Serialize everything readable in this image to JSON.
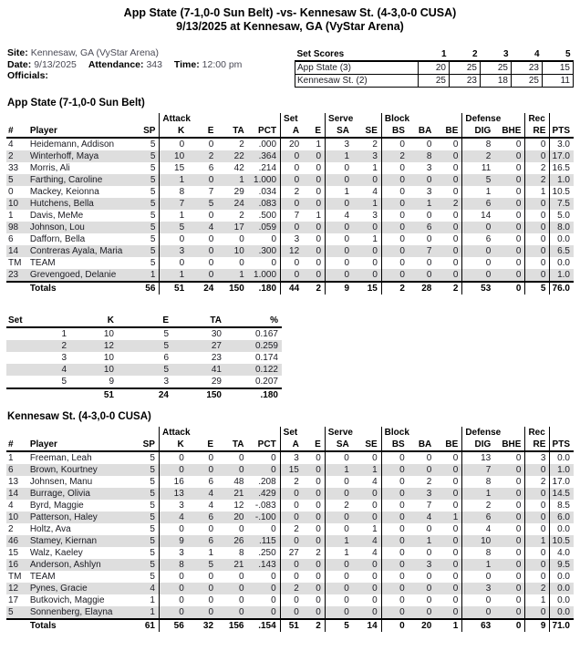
{
  "header": {
    "title_line1": "App State (7-1,0-0 Sun Belt) -vs- Kennesaw St. (4-3,0-0 CUSA)",
    "title_line2": "9/13/2025 at Kennesaw, GA (VyStar Arena)"
  },
  "info": {
    "site_label": "Site:",
    "site": "Kennesaw, GA (VyStar Arena)",
    "date_label": "Date:",
    "date": "9/13/2025",
    "attendance_label": "Attendance:",
    "attendance": "343",
    "time_label": "Time:",
    "time": "12:00 pm",
    "officials_label": "Officials:"
  },
  "set_scores": {
    "title": "Set Scores",
    "columns": [
      "1",
      "2",
      "3",
      "4",
      "5"
    ],
    "rows": [
      {
        "team": "App State (3)",
        "scores": [
          "20",
          "25",
          "25",
          "23",
          "15"
        ]
      },
      {
        "team": "Kennesaw St. (2)",
        "scores": [
          "25",
          "23",
          "18",
          "25",
          "11"
        ]
      }
    ]
  },
  "stat_table": {
    "groups": [
      {
        "label": "",
        "span": 3
      },
      {
        "label": "Attack",
        "span": 4
      },
      {
        "label": "Set",
        "span": 2
      },
      {
        "label": "Serve",
        "span": 2
      },
      {
        "label": "Block",
        "span": 3
      },
      {
        "label": "Defense",
        "span": 2
      },
      {
        "label": "Rec",
        "span": 1
      },
      {
        "label": "",
        "span": 1
      }
    ],
    "columns": [
      "#",
      "Player",
      "SP",
      "K",
      "E",
      "TA",
      "PCT",
      "A",
      "E",
      "SA",
      "SE",
      "BS",
      "BA",
      "BE",
      "DIG",
      "BHE",
      "RE",
      "PTS"
    ],
    "totals_label": "Totals"
  },
  "teams": [
    {
      "heading": "App State (7-1,0-0 Sun Belt)",
      "players": [
        [
          "4",
          "Heidemann, Addison",
          "5",
          "0",
          "0",
          "2",
          ".000",
          "20",
          "1",
          "3",
          "2",
          "0",
          "0",
          "0",
          "8",
          "0",
          "0",
          "3.0"
        ],
        [
          "2",
          "Winterhoff, Maya",
          "5",
          "10",
          "2",
          "22",
          ".364",
          "0",
          "0",
          "1",
          "3",
          "2",
          "8",
          "0",
          "2",
          "0",
          "0",
          "17.0"
        ],
        [
          "33",
          "Morris, Ali",
          "5",
          "15",
          "6",
          "42",
          ".214",
          "0",
          "0",
          "0",
          "1",
          "0",
          "3",
          "0",
          "11",
          "0",
          "2",
          "16.5"
        ],
        [
          "5",
          "Farthing, Caroline",
          "5",
          "1",
          "0",
          "1",
          "1.000",
          "0",
          "0",
          "0",
          "0",
          "0",
          "0",
          "0",
          "5",
          "0",
          "2",
          "1.0"
        ],
        [
          "0",
          "Mackey, Keionna",
          "5",
          "8",
          "7",
          "29",
          ".034",
          "2",
          "0",
          "1",
          "4",
          "0",
          "3",
          "0",
          "1",
          "0",
          "1",
          "10.5"
        ],
        [
          "10",
          "Hutchens, Bella",
          "5",
          "7",
          "5",
          "24",
          ".083",
          "0",
          "0",
          "0",
          "1",
          "0",
          "1",
          "2",
          "6",
          "0",
          "0",
          "7.5"
        ],
        [
          "1",
          "Davis, MeMe",
          "5",
          "1",
          "0",
          "2",
          ".500",
          "7",
          "1",
          "4",
          "3",
          "0",
          "0",
          "0",
          "14",
          "0",
          "0",
          "5.0"
        ],
        [
          "98",
          "Johnson, Lou",
          "5",
          "5",
          "4",
          "17",
          ".059",
          "0",
          "0",
          "0",
          "0",
          "0",
          "6",
          "0",
          "0",
          "0",
          "0",
          "8.0"
        ],
        [
          "6",
          "Dafforn, Bella",
          "5",
          "0",
          "0",
          "0",
          "0",
          "3",
          "0",
          "0",
          "1",
          "0",
          "0",
          "0",
          "6",
          "0",
          "0",
          "0.0"
        ],
        [
          "14",
          "Contreras Ayala, Maria",
          "5",
          "3",
          "0",
          "10",
          ".300",
          "12",
          "0",
          "0",
          "0",
          "0",
          "7",
          "0",
          "0",
          "0",
          "0",
          "6.5"
        ],
        [
          "TM",
          "TEAM",
          "5",
          "0",
          "0",
          "0",
          "0",
          "0",
          "0",
          "0",
          "0",
          "0",
          "0",
          "0",
          "0",
          "0",
          "0",
          "0.0"
        ],
        [
          "23",
          "Grevengoed, Delanie",
          "1",
          "1",
          "0",
          "1",
          "1.000",
          "0",
          "0",
          "0",
          "0",
          "0",
          "0",
          "0",
          "0",
          "0",
          "0",
          "1.0"
        ]
      ],
      "totals": [
        "",
        "Totals",
        "56",
        "51",
        "24",
        "150",
        ".180",
        "44",
        "2",
        "9",
        "15",
        "2",
        "28",
        "2",
        "53",
        "0",
        "5",
        "76.0"
      ]
    },
    {
      "heading": "Kennesaw St. (4-3,0-0 CUSA)",
      "players": [
        [
          "1",
          "Freeman, Leah",
          "5",
          "0",
          "0",
          "0",
          "0",
          "3",
          "0",
          "0",
          "0",
          "0",
          "0",
          "0",
          "13",
          "0",
          "3",
          "0.0"
        ],
        [
          "6",
          "Brown, Kourtney",
          "5",
          "0",
          "0",
          "0",
          "0",
          "15",
          "0",
          "1",
          "1",
          "0",
          "0",
          "0",
          "7",
          "0",
          "0",
          "1.0"
        ],
        [
          "13",
          "Johnsen, Manu",
          "5",
          "16",
          "6",
          "48",
          ".208",
          "2",
          "0",
          "0",
          "4",
          "0",
          "2",
          "0",
          "8",
          "0",
          "2",
          "17.0"
        ],
        [
          "14",
          "Burrage, Olivia",
          "5",
          "13",
          "4",
          "21",
          ".429",
          "0",
          "0",
          "0",
          "0",
          "0",
          "3",
          "0",
          "1",
          "0",
          "0",
          "14.5"
        ],
        [
          "4",
          "Byrd, Maggie",
          "5",
          "3",
          "4",
          "12",
          "-.083",
          "0",
          "0",
          "2",
          "0",
          "0",
          "7",
          "0",
          "2",
          "0",
          "0",
          "8.5"
        ],
        [
          "10",
          "Patterson, Haley",
          "5",
          "4",
          "6",
          "20",
          "-.100",
          "0",
          "0",
          "0",
          "0",
          "0",
          "4",
          "1",
          "6",
          "0",
          "0",
          "6.0"
        ],
        [
          "2",
          "Holtz, Ava",
          "5",
          "0",
          "0",
          "0",
          "0",
          "2",
          "0",
          "0",
          "1",
          "0",
          "0",
          "0",
          "4",
          "0",
          "0",
          "0.0"
        ],
        [
          "46",
          "Stamey, Kiernan",
          "5",
          "9",
          "6",
          "26",
          ".115",
          "0",
          "0",
          "1",
          "4",
          "0",
          "1",
          "0",
          "10",
          "0",
          "1",
          "10.5"
        ],
        [
          "15",
          "Walz, Kaeley",
          "5",
          "3",
          "1",
          "8",
          ".250",
          "27",
          "2",
          "1",
          "4",
          "0",
          "0",
          "0",
          "8",
          "0",
          "0",
          "4.0"
        ],
        [
          "16",
          "Anderson, Ashlyn",
          "5",
          "8",
          "5",
          "21",
          ".143",
          "0",
          "0",
          "0",
          "0",
          "0",
          "3",
          "0",
          "1",
          "0",
          "0",
          "9.5"
        ],
        [
          "TM",
          "TEAM",
          "5",
          "0",
          "0",
          "0",
          "0",
          "0",
          "0",
          "0",
          "0",
          "0",
          "0",
          "0",
          "0",
          "0",
          "0",
          "0.0"
        ],
        [
          "12",
          "Pynes, Gracie",
          "4",
          "0",
          "0",
          "0",
          "0",
          "2",
          "0",
          "0",
          "0",
          "0",
          "0",
          "0",
          "3",
          "0",
          "2",
          "0.0"
        ],
        [
          "17",
          "Butkovich, Maggie",
          "1",
          "0",
          "0",
          "0",
          "0",
          "0",
          "0",
          "0",
          "0",
          "0",
          "0",
          "0",
          "0",
          "0",
          "1",
          "0.0"
        ],
        [
          "5",
          "Sonnenberg, Elayna",
          "1",
          "0",
          "0",
          "0",
          "0",
          "0",
          "0",
          "0",
          "0",
          "0",
          "0",
          "0",
          "0",
          "0",
          "0",
          "0.0"
        ]
      ],
      "totals": [
        "",
        "Totals",
        "61",
        "56",
        "32",
        "156",
        ".154",
        "51",
        "2",
        "5",
        "14",
        "0",
        "20",
        "1",
        "63",
        "0",
        "9",
        "71.0"
      ]
    }
  ],
  "set_breakdown": {
    "columns": [
      "Set",
      "K",
      "E",
      "TA",
      "%"
    ],
    "rows": [
      [
        "1",
        "10",
        "5",
        "30",
        "0.167"
      ],
      [
        "2",
        "12",
        "5",
        "27",
        "0.259"
      ],
      [
        "3",
        "10",
        "6",
        "23",
        "0.174"
      ],
      [
        "4",
        "10",
        "5",
        "41",
        "0.122"
      ],
      [
        "5",
        "9",
        "3",
        "29",
        "0.207"
      ]
    ],
    "totals": [
      "",
      "51",
      "24",
      "150",
      ".180"
    ]
  },
  "colors": {
    "row_stripe": "#dedede",
    "border": "#000000",
    "text": "#1b1b22",
    "info_value_text": "#4a4a55"
  }
}
